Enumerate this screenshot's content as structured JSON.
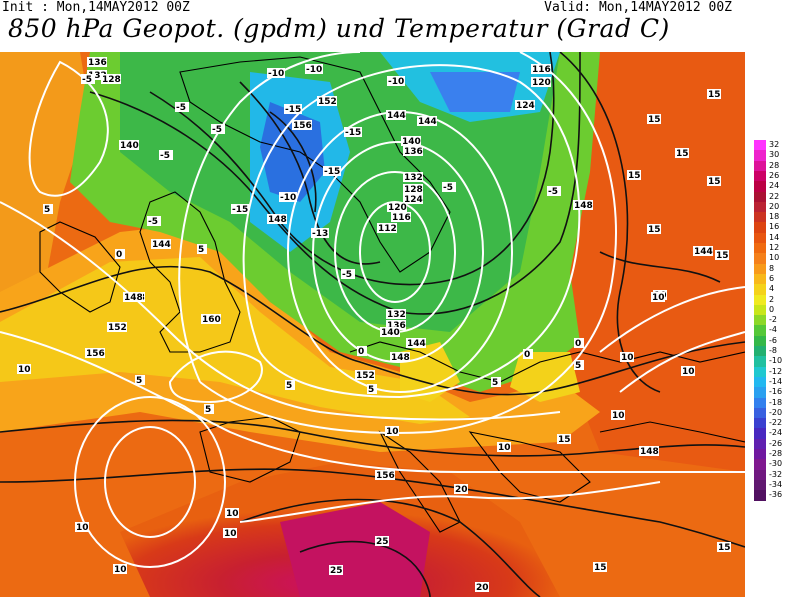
{
  "header": {
    "init": "Init : Mon,14MAY2012 00Z",
    "valid": "Valid: Mon,14MAY2012 00Z",
    "title": "850 hPa Geopot. (gpdm) und Temperatur (Grad C)"
  },
  "legend": {
    "levels": [
      "32",
      "30",
      "28",
      "26",
      "24",
      "22",
      "20",
      "18",
      "16",
      "14",
      "12",
      "10",
      "8",
      "6",
      "4",
      "2",
      "0",
      "-2",
      "-4",
      "-6",
      "-8",
      "-10",
      "-12",
      "-14",
      "-16",
      "-18",
      "-20",
      "-22",
      "-24",
      "-26",
      "-28",
      "-30",
      "-32",
      "-34",
      "-36"
    ],
    "colors": [
      "#ff33ff",
      "#ee22cc",
      "#dd1199",
      "#cc0066",
      "#bb0044",
      "#aa1133",
      "#bb2233",
      "#cc3322",
      "#dd4411",
      "#e85510",
      "#f06a10",
      "#f5801a",
      "#f89a1a",
      "#f8b81a",
      "#f5d21a",
      "#f0ea20",
      "#c8e61a",
      "#8cd828",
      "#55c838",
      "#34b848",
      "#22b070",
      "#20c0a0",
      "#20c8d0",
      "#22b8f0",
      "#2aa0f0",
      "#3280ee",
      "#3860e0",
      "#3a40d0",
      "#4828c0",
      "#6020b0",
      "#7018a0",
      "#801890",
      "#701880",
      "#601870",
      "#501060"
    ]
  },
  "isoheights": {
    "labels": [
      "136",
      "132",
      "128",
      "140",
      "152",
      "148",
      "156",
      "144",
      "120",
      "116",
      "124",
      "112",
      "160",
      "152",
      "148",
      "156",
      "144",
      "148",
      "132",
      "136",
      "140",
      "144",
      "148",
      "152",
      "156",
      "148",
      "144",
      "140",
      "136",
      "132",
      "128",
      "124",
      "120",
      "116",
      "144",
      "148"
    ]
  },
  "isotherms": {
    "labels": [
      "-5",
      "-10",
      "-15",
      "-5",
      "-10",
      "-5",
      "-5",
      "0",
      "5",
      "-5",
      "-10",
      "-15",
      "-15",
      "-13",
      "-15",
      "-10",
      "-5",
      "5",
      "0",
      "5",
      "10",
      "5",
      "5",
      "5",
      "5",
      "0",
      "-5",
      "-5",
      "0",
      "5",
      "10",
      "15",
      "15",
      "15",
      "15",
      "15",
      "15",
      "15",
      "10",
      "10",
      "10",
      "10",
      "10",
      "10",
      "15",
      "10",
      "10",
      "10",
      "20",
      "25",
      "25",
      "20",
      "15",
      "15",
      "10"
    ]
  }
}
